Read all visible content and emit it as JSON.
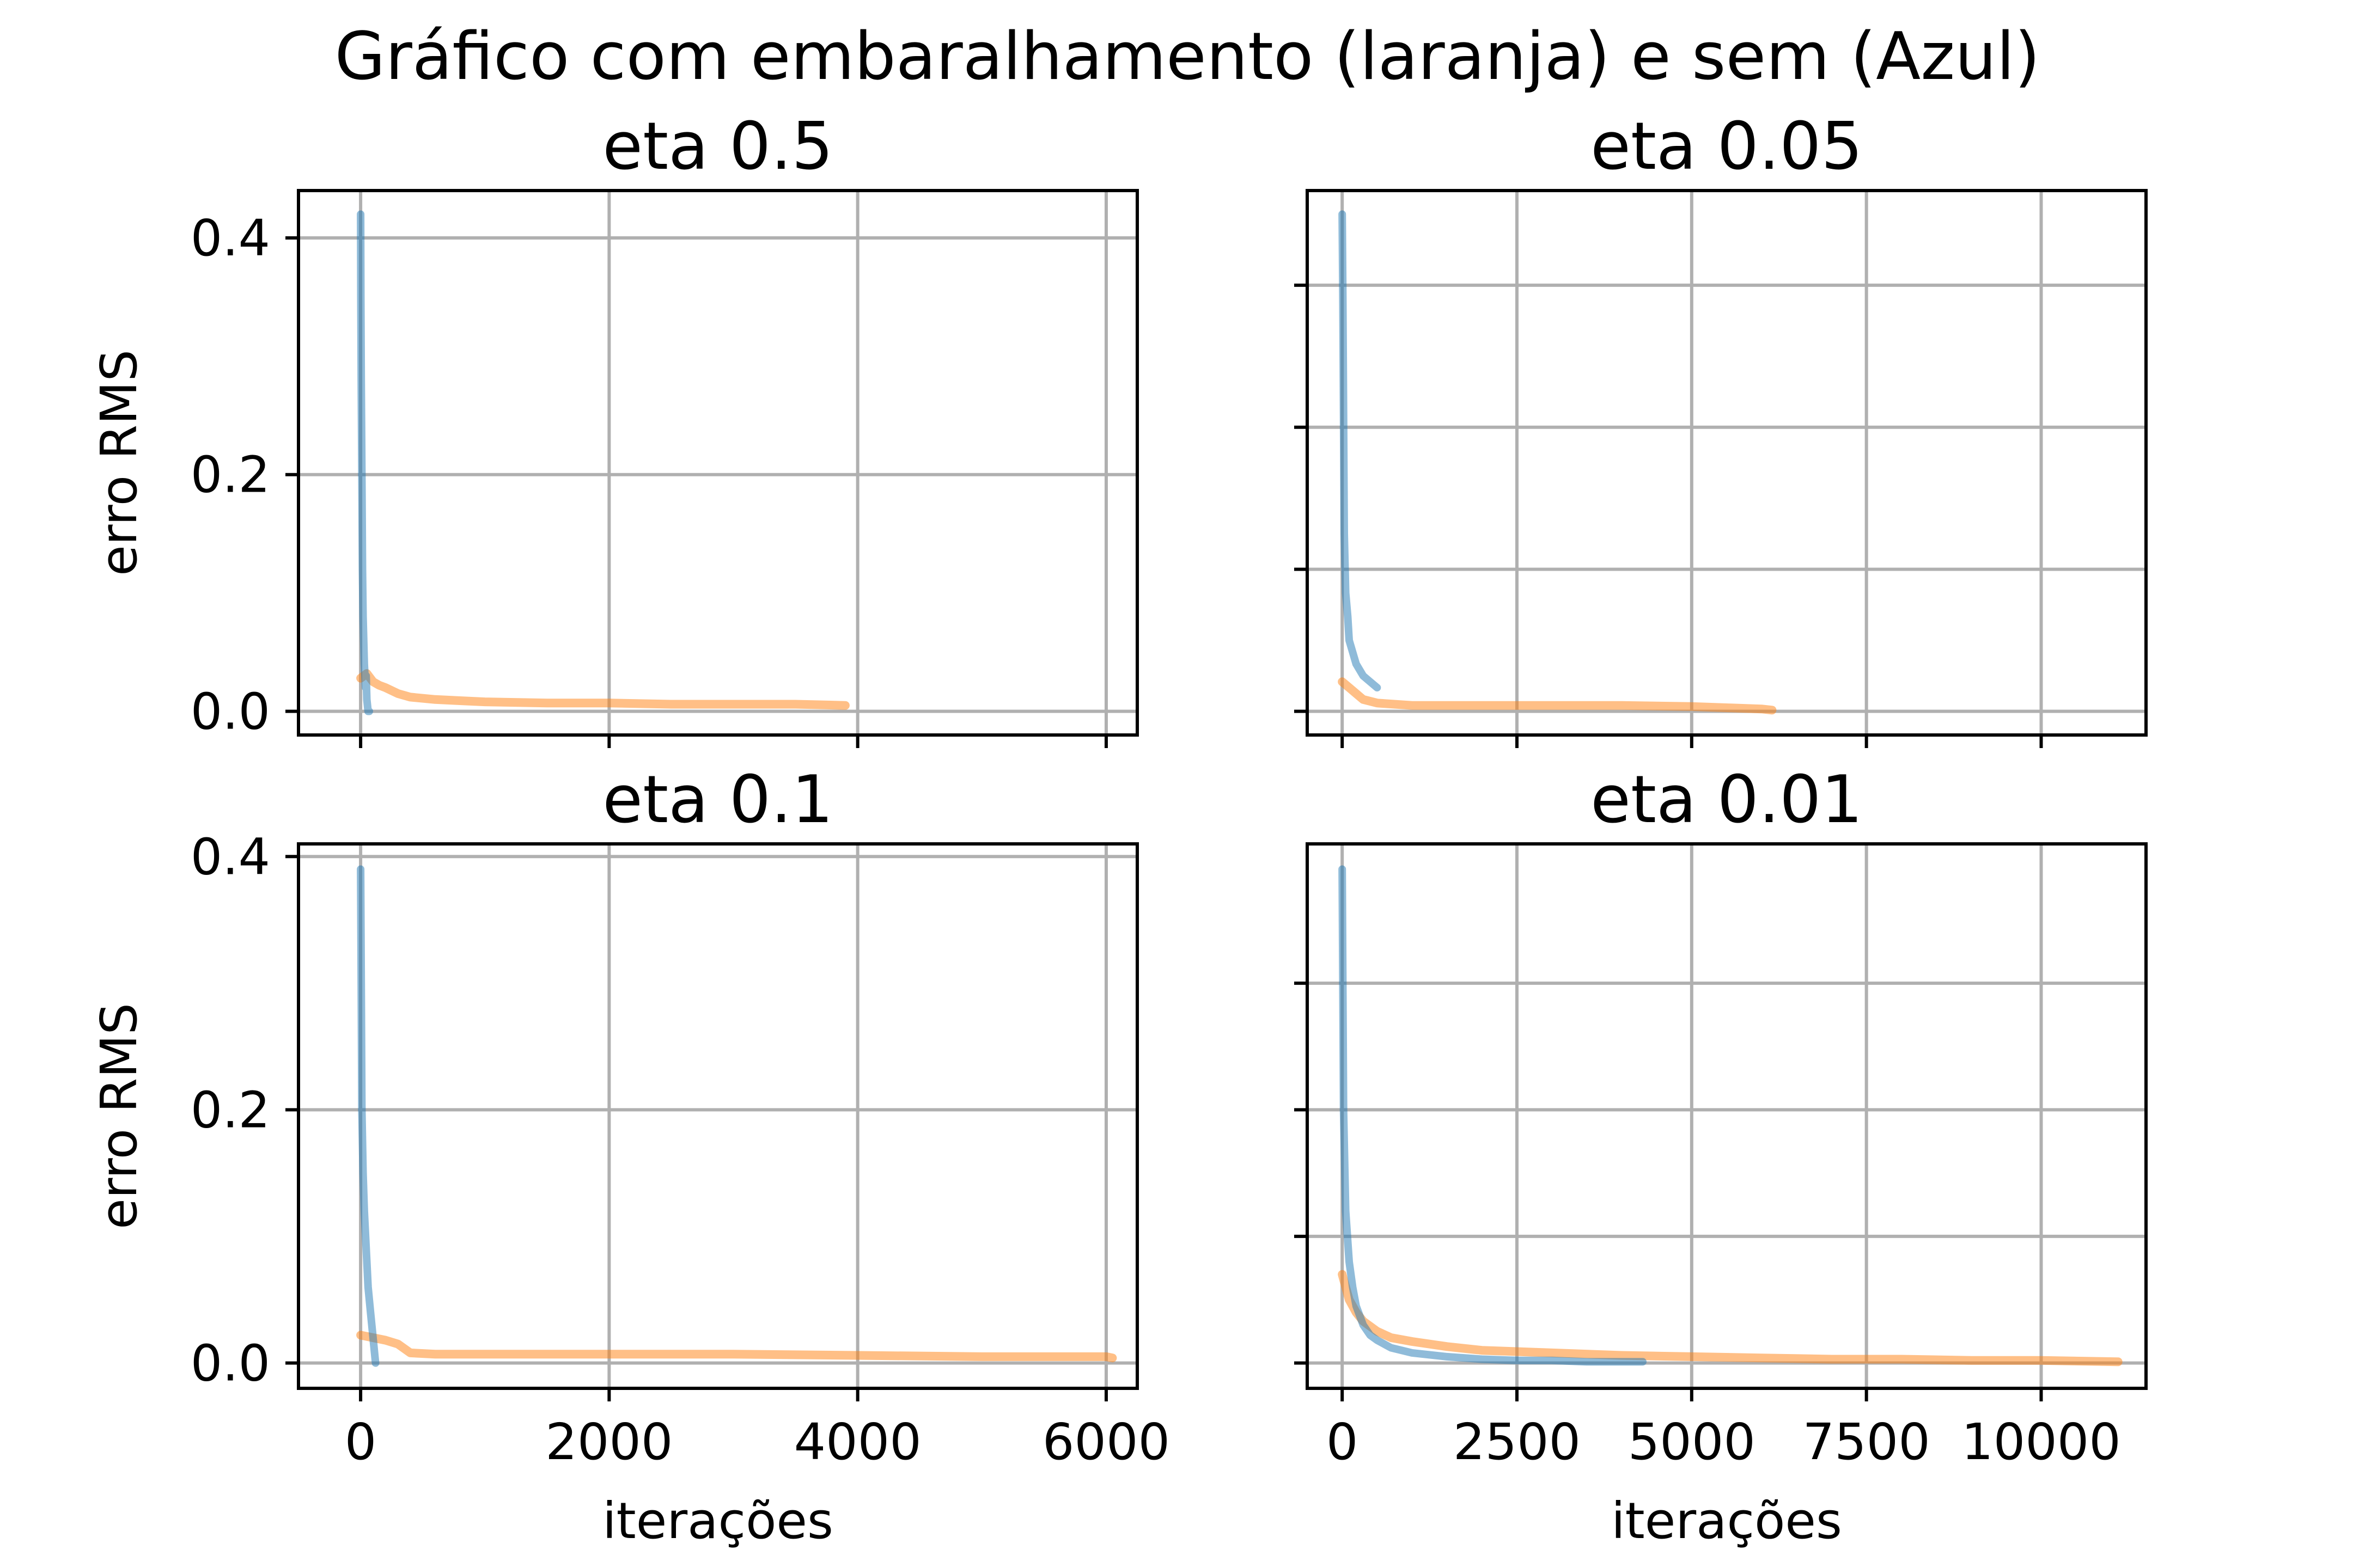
{
  "figure_title": "Gráfico com embaralhamento (laranja) e sem (Azul)",
  "colors": {
    "azul": "#1f77b4",
    "laranja": "#ff7f0e"
  },
  "chart_data": [
    {
      "type": "line",
      "title": "eta 0.5",
      "xlabel": "",
      "ylabel": "erro RMS",
      "xlim": [
        -500,
        6250
      ],
      "ylim": [
        -0.02,
        0.44
      ],
      "xticks": [
        0,
        2000,
        4000,
        6000
      ],
      "xticklabels": [],
      "yticks": [
        0.0,
        0.2,
        0.4
      ],
      "yticklabels": [
        "0.0",
        "0.2",
        "0.4"
      ],
      "grid": true,
      "series": [
        {
          "color": "blue",
          "x": [
            0,
            2,
            5,
            10,
            15,
            20,
            30,
            40,
            45,
            50,
            60,
            70
          ],
          "y": [
            0.42,
            0.35,
            0.28,
            0.2,
            0.12,
            0.08,
            0.04,
            0.02,
            0.03,
            0.01,
            0.0,
            0.0
          ]
        },
        {
          "color": "orange",
          "x": [
            0,
            50,
            100,
            150,
            200,
            300,
            400,
            600,
            800,
            1000,
            1500,
            2000,
            2500,
            3000,
            3500,
            3900
          ],
          "y": [
            0.028,
            0.032,
            0.025,
            0.022,
            0.02,
            0.015,
            0.012,
            0.01,
            0.009,
            0.008,
            0.007,
            0.007,
            0.006,
            0.006,
            0.006,
            0.005
          ]
        }
      ]
    },
    {
      "type": "line",
      "title": "eta 0.05",
      "xlabel": "",
      "ylabel": "",
      "xlim": [
        -500,
        11500
      ],
      "ylim": [
        -0.02,
        0.44
      ],
      "xticks": [
        0,
        2500,
        5000,
        7500,
        10000
      ],
      "xticklabels": [],
      "yticks": [
        0.0,
        0.12,
        0.24,
        0.36
      ],
      "yticklabels": [],
      "grid": true,
      "series": [
        {
          "color": "blue",
          "x": [
            0,
            10,
            20,
            30,
            50,
            80,
            100,
            150,
            200,
            300,
            400,
            500
          ],
          "y": [
            0.42,
            0.35,
            0.25,
            0.15,
            0.1,
            0.08,
            0.06,
            0.05,
            0.04,
            0.03,
            0.025,
            0.02
          ]
        },
        {
          "color": "orange",
          "x": [
            0,
            100,
            200,
            300,
            500,
            1000,
            2000,
            3000,
            4000,
            5000,
            5500,
            6000,
            6150
          ],
          "y": [
            0.025,
            0.02,
            0.015,
            0.01,
            0.007,
            0.005,
            0.005,
            0.005,
            0.005,
            0.004,
            0.003,
            0.002,
            0.001
          ]
        }
      ]
    },
    {
      "type": "line",
      "title": "eta 0.1",
      "xlabel": "iterações",
      "ylabel": "erro RMS",
      "xlim": [
        -500,
        6250
      ],
      "ylim": [
        -0.02,
        0.41
      ],
      "xticks": [
        0,
        2000,
        4000,
        6000
      ],
      "xticklabels": [
        "0",
        "2000",
        "4000",
        "6000"
      ],
      "yticks": [
        0.0,
        0.2,
        0.4
      ],
      "yticklabels": [
        "0.0",
        "0.2",
        "0.4"
      ],
      "grid": true,
      "series": [
        {
          "color": "blue",
          "x": [
            0,
            5,
            10,
            20,
            30,
            40,
            50,
            60,
            80,
            100,
            120
          ],
          "y": [
            0.39,
            0.3,
            0.2,
            0.15,
            0.12,
            0.1,
            0.08,
            0.06,
            0.04,
            0.02,
            0.0
          ]
        },
        {
          "color": "orange",
          "x": [
            0,
            50,
            100,
            200,
            300,
            400,
            600,
            1000,
            2000,
            3000,
            4000,
            5000,
            6000,
            6050
          ],
          "y": [
            0.022,
            0.021,
            0.02,
            0.018,
            0.015,
            0.008,
            0.007,
            0.007,
            0.007,
            0.007,
            0.006,
            0.005,
            0.005,
            0.004
          ]
        }
      ]
    },
    {
      "type": "line",
      "title": "eta 0.01",
      "xlabel": "iterações",
      "ylabel": "",
      "xlim": [
        -500,
        11500
      ],
      "ylim": [
        -0.02,
        0.41
      ],
      "xticks": [
        0,
        2500,
        5000,
        7500,
        10000
      ],
      "xticklabels": [
        "0",
        "2500",
        "5000",
        "7500",
        "10000"
      ],
      "yticks": [
        0.0,
        0.1,
        0.2,
        0.3
      ],
      "yticklabels": [],
      "grid": true,
      "series": [
        {
          "color": "blue",
          "x": [
            0,
            20,
            50,
            100,
            150,
            200,
            300,
            400,
            500,
            700,
            1000,
            1500,
            2000,
            2500,
            3000,
            3500,
            4000,
            4300
          ],
          "y": [
            0.39,
            0.2,
            0.12,
            0.08,
            0.06,
            0.045,
            0.03,
            0.022,
            0.018,
            0.012,
            0.008,
            0.005,
            0.003,
            0.002,
            0.002,
            0.001,
            0.001,
            0.001
          ]
        },
        {
          "color": "orange",
          "x": [
            0,
            50,
            100,
            200,
            300,
            500,
            700,
            1000,
            1500,
            2000,
            3000,
            4000,
            5000,
            6000,
            7000,
            8000,
            9000,
            10000,
            11100
          ],
          "y": [
            0.07,
            0.06,
            0.05,
            0.04,
            0.033,
            0.025,
            0.02,
            0.017,
            0.013,
            0.01,
            0.008,
            0.006,
            0.005,
            0.004,
            0.003,
            0.003,
            0.002,
            0.002,
            0.001
          ]
        }
      ]
    }
  ]
}
